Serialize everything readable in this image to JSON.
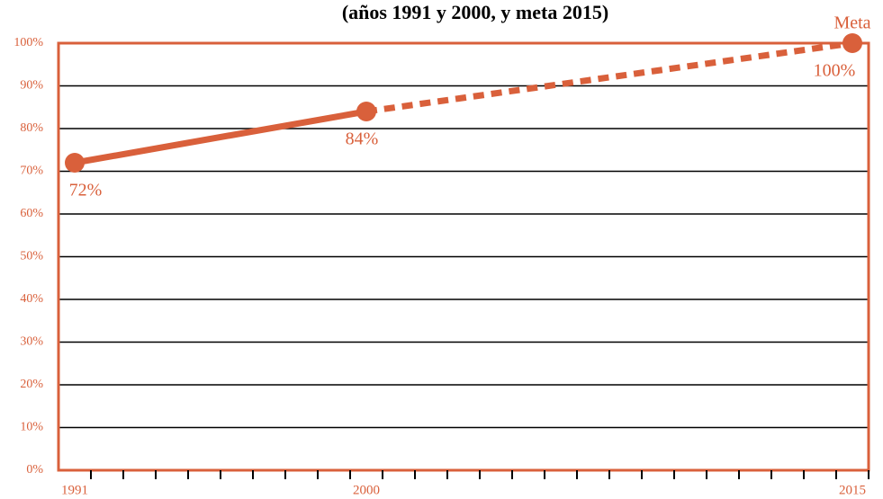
{
  "chart_data": {
    "type": "line",
    "title": "(años 1991 y 2000, y meta 2015)",
    "annotation": "Meta",
    "x": [
      1991,
      2000,
      2015
    ],
    "series": [
      {
        "color": "#d9603b",
        "values": [
          72,
          84,
          100
        ],
        "value_labels": [
          "72%",
          "84%",
          "100%"
        ],
        "segment_styles": [
          "solid",
          "dashed"
        ]
      }
    ],
    "xlim": [
      1990.5,
      2015.5
    ],
    "xticks": [
      1991,
      2000,
      2015
    ],
    "ylim": [
      0,
      100
    ],
    "yticks": [
      {
        "value": 0,
        "label": "0%"
      },
      {
        "value": 10,
        "label": "10%"
      },
      {
        "value": 20,
        "label": "20%"
      },
      {
        "value": 30,
        "label": "30%"
      },
      {
        "value": 40,
        "label": "40%"
      },
      {
        "value": 50,
        "label": "50%"
      },
      {
        "value": 60,
        "label": "60%"
      },
      {
        "value": 70,
        "label": "70%"
      },
      {
        "value": 80,
        "label": "80%"
      },
      {
        "value": 90,
        "label": "90%"
      },
      {
        "value": 100,
        "label": "100%"
      }
    ],
    "grid": true
  }
}
